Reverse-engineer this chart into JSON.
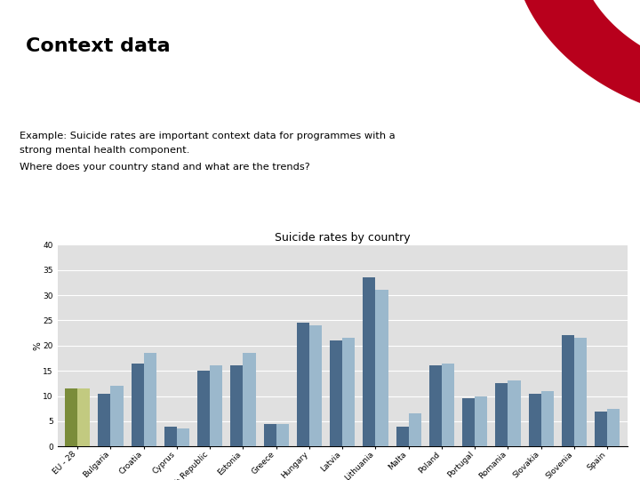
{
  "title": "Suicide rates by country",
  "ylabel": "%",
  "categories": [
    "EU - 28",
    "Bulgaria",
    "Croatia",
    "Cyprus",
    "Czech Republic",
    "Estonia",
    "Greece",
    "Hungary",
    "Latvia",
    "Lithuania",
    "Malta",
    "Poland",
    "Portugal",
    "Romania",
    "Slovakia",
    "Slovenia",
    "Spain"
  ],
  "values_2011": [
    11.5,
    10.5,
    16.5,
    4.0,
    15.0,
    16.0,
    4.5,
    24.5,
    21.0,
    33.5,
    4.0,
    16.0,
    9.5,
    12.5,
    10.5,
    22.0,
    7.0
  ],
  "values_2012": [
    11.5,
    12.0,
    18.5,
    3.5,
    16.0,
    18.5,
    4.5,
    24.0,
    21.5,
    31.0,
    6.5,
    16.5,
    10.0,
    13.0,
    11.0,
    21.5,
    7.5
  ],
  "color_2011_default": "#4A6A8A",
  "color_2011_eu": "#7A8C3A",
  "color_2012_default": "#9BB8CC",
  "color_2012_eu": "#C2CA80",
  "ylim": [
    0,
    40
  ],
  "yticks": [
    0,
    5,
    10,
    15,
    20,
    25,
    30,
    35,
    40
  ],
  "background_color": "#E0E0E0",
  "grid_color": "#FFFFFF",
  "title_fontsize": 9,
  "tick_fontsize": 6.5,
  "label_fontsize": 7.5,
  "legend_fontsize": 7.5,
  "header_title": "Context data",
  "text_line1": "Example: Suicide rates are important context data for programmes with a",
  "text_line1b": "strong mental health component.",
  "text_line2": "Where does your country stand and what are the trends?",
  "header_bg": "#FFFFFF",
  "body_bg": "#CECECE",
  "swoosh_color": "#B8001C"
}
